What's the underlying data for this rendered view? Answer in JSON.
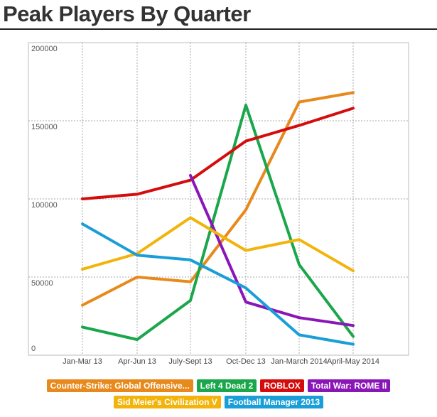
{
  "chart_data": {
    "type": "line",
    "title": "Peak Players By Quarter",
    "xlabel": "",
    "ylabel": "",
    "categories": [
      "Jan-Mar 13",
      "Apr-Jun 13",
      "July-Sept 13",
      "Oct-Dec 13",
      "Jan-March 2014",
      "April-May 2014"
    ],
    "y_ticks": [
      "0",
      "50000",
      "100000",
      "150000",
      "200000"
    ],
    "ylim": [
      0,
      200000
    ],
    "grid": true,
    "legend_position": "bottom",
    "series": [
      {
        "name": "Counter-Strike: Global Offensive...",
        "color": "#e8891c",
        "x": [
          0,
          1,
          2,
          3,
          4,
          5
        ],
        "values": [
          32000,
          50000,
          47000,
          93000,
          162000,
          168000
        ]
      },
      {
        "name": "Left 4 Dead 2",
        "color": "#1aa64b",
        "x": [
          0,
          1,
          2,
          3,
          4,
          5
        ],
        "values": [
          18000,
          10000,
          35000,
          160000,
          58000,
          12000
        ]
      },
      {
        "name": "ROBLOX",
        "color": "#d40c0c",
        "x": [
          0,
          1,
          2,
          3,
          4,
          5
        ],
        "values": [
          100000,
          103000,
          112000,
          137000,
          147000,
          158000
        ]
      },
      {
        "name": "Total War: ROME II",
        "color": "#8a16b8",
        "x": [
          2,
          3,
          4,
          5
        ],
        "values": [
          115000,
          34000,
          24000,
          19000
        ]
      },
      {
        "name": "Sid Meier's Civilization V",
        "color": "#f2b40b",
        "x": [
          0,
          1,
          2,
          3,
          4,
          5
        ],
        "values": [
          55000,
          65000,
          88000,
          67000,
          74000,
          54000
        ]
      },
      {
        "name": "Football Manager 2013",
        "color": "#1a9ed8",
        "x": [
          0,
          1,
          2,
          3,
          4,
          5
        ],
        "values": [
          84000,
          64000,
          61000,
          43000,
          13000,
          7000
        ]
      }
    ]
  },
  "legend": {
    "rows": [
      [
        0,
        1,
        2,
        3
      ],
      [
        4,
        5
      ]
    ]
  }
}
